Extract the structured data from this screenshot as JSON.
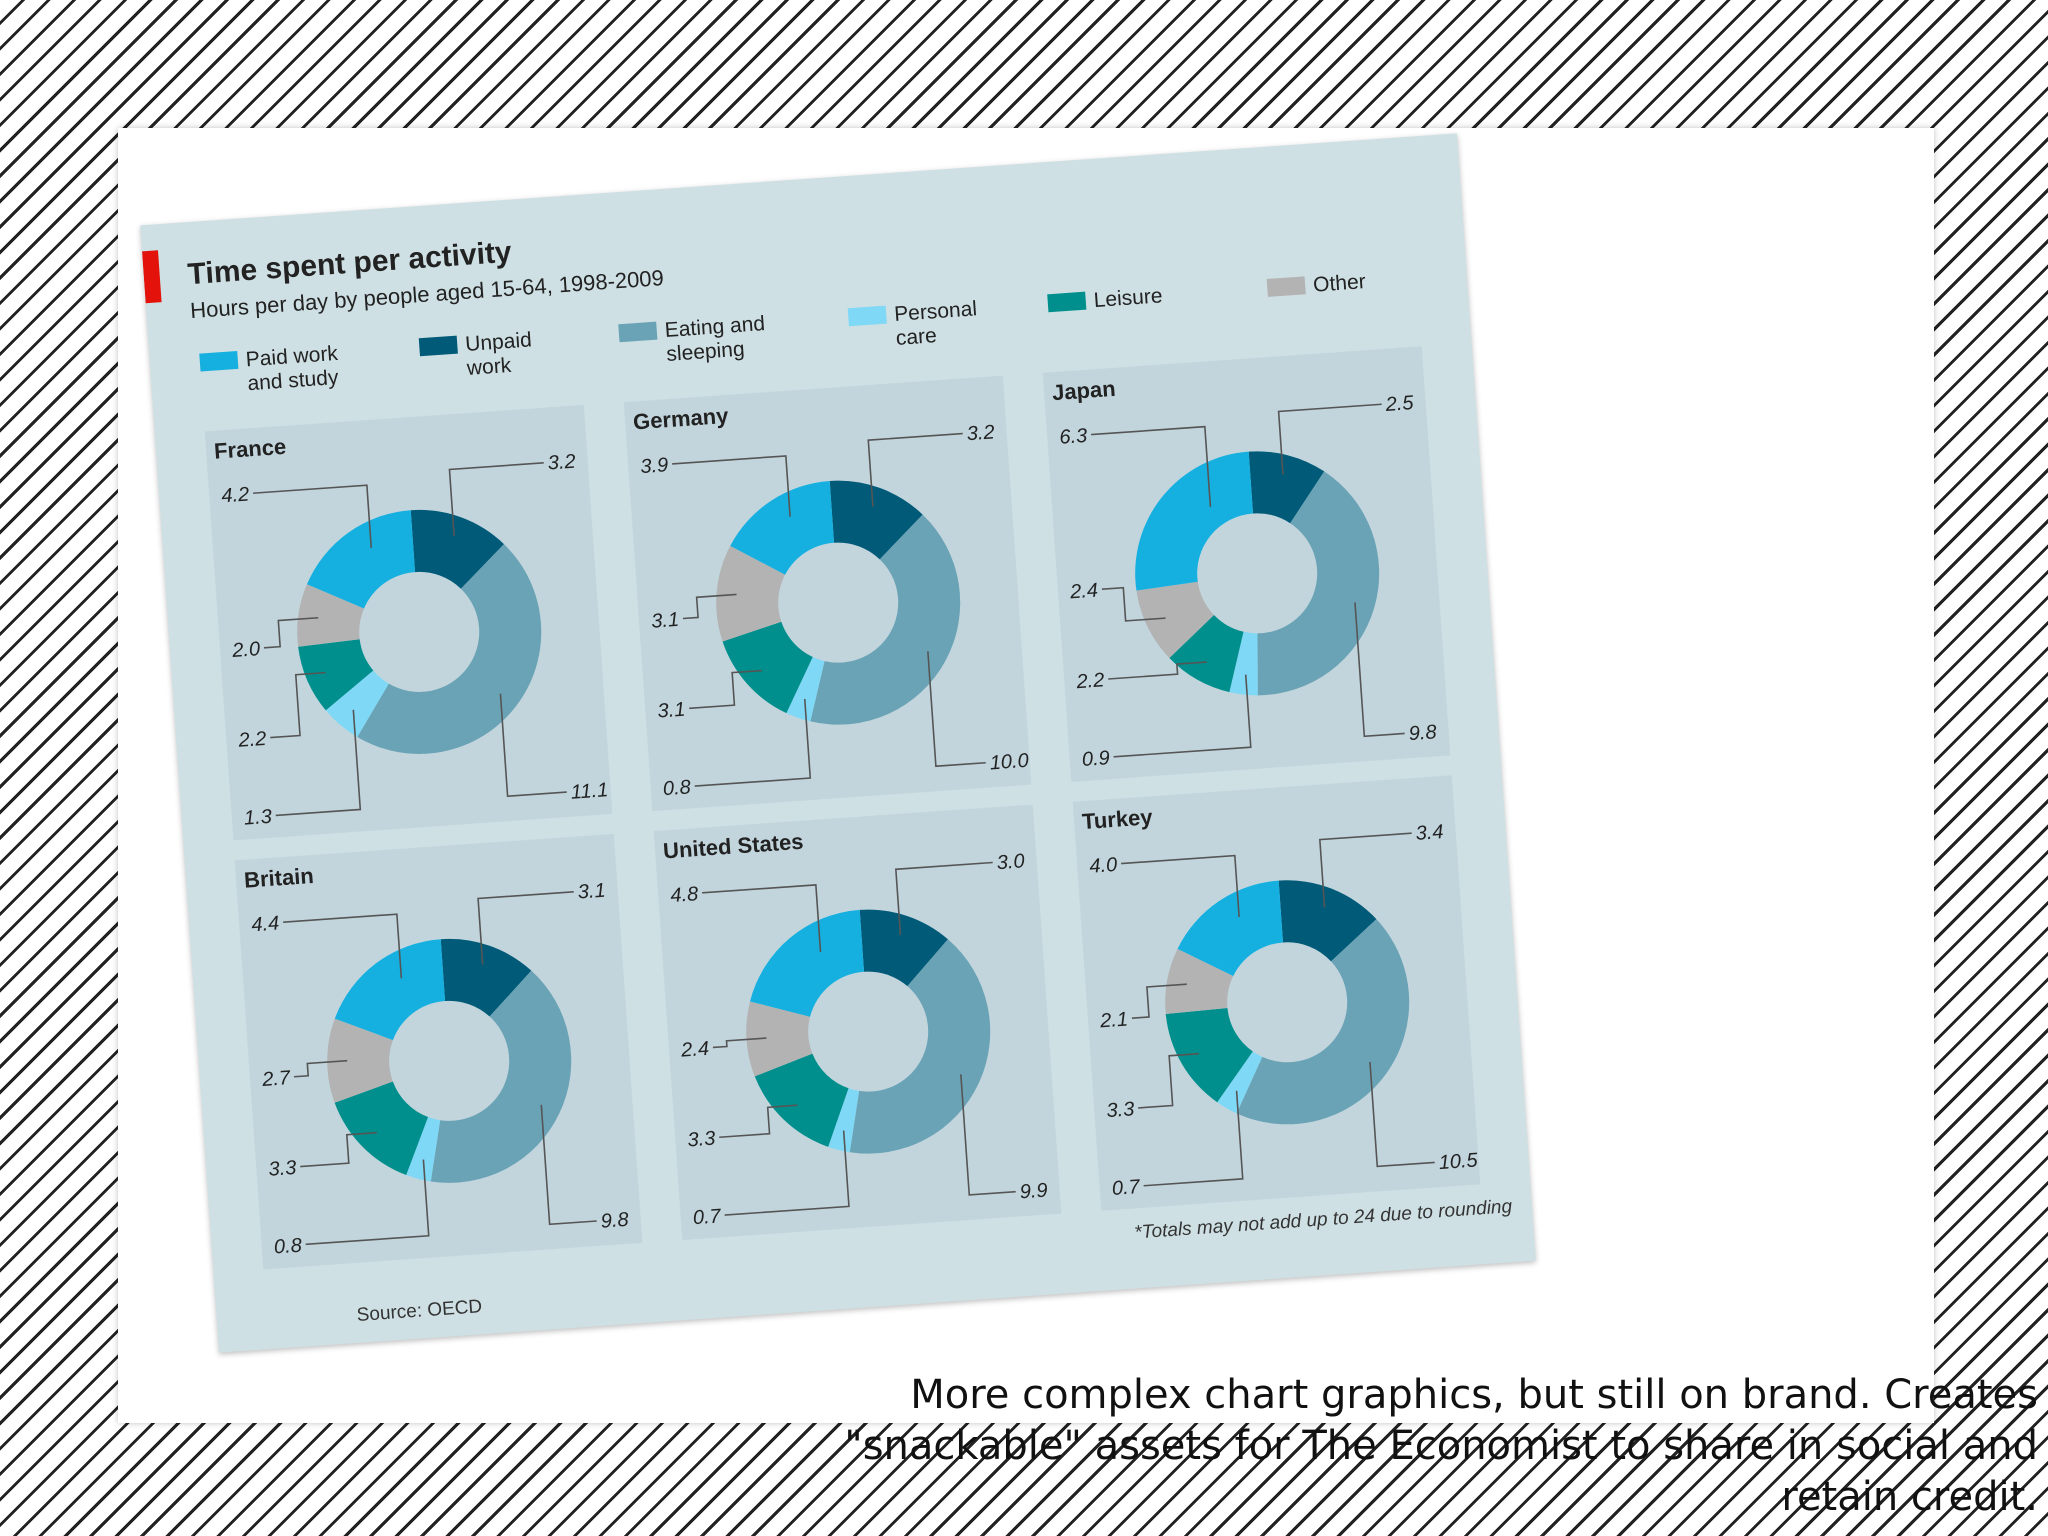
{
  "caption": "More complex chart graphics, but still on brand. Creates \"snackable\" assets for The Economist to share in social and retain credit.",
  "colors": {
    "accent": "#e3120b",
    "panel_background": "#cfe0e4",
    "chart_background": "#c2d5dd",
    "text": "#222222",
    "leader": "#555555"
  },
  "chart_data": {
    "type": "pie",
    "variant": "donut small multiples",
    "title": "Time spent per activity",
    "subtitle": "Hours per day by people aged 15-64, 1998-2009",
    "source": "Source: OECD",
    "footnote": "*Totals may not add up to 24 due to rounding",
    "categories": [
      {
        "key": "paid",
        "label": [
          "Paid work",
          "and study"
        ],
        "color": "#15b0e0"
      },
      {
        "key": "unpaid",
        "label": [
          "Unpaid",
          "work"
        ],
        "color": "#005a78"
      },
      {
        "key": "eating",
        "label": [
          "Eating and",
          "sleeping"
        ],
        "color": "#6aa3b5"
      },
      {
        "key": "personal",
        "label": [
          "Personal",
          "care"
        ],
        "color": "#7fd8f5"
      },
      {
        "key": "leisure",
        "label": [
          "Leisure"
        ],
        "color": "#008f8c"
      },
      {
        "key": "other",
        "label": [
          "Other"
        ],
        "color": "#b3b3b3"
      }
    ],
    "countries": [
      {
        "name": "France",
        "values": {
          "paid": 4.2,
          "unpaid": 3.2,
          "eating": 11.1,
          "personal": 1.3,
          "leisure": 2.2,
          "other": 2.0
        }
      },
      {
        "name": "Germany",
        "values": {
          "paid": 3.9,
          "unpaid": 3.2,
          "eating": 10.0,
          "personal": 0.8,
          "leisure": 3.1,
          "other": 3.1
        }
      },
      {
        "name": "Japan",
        "values": {
          "paid": 6.3,
          "unpaid": 2.5,
          "eating": 9.8,
          "personal": 0.9,
          "leisure": 2.2,
          "other": 2.4
        }
      },
      {
        "name": "Britain",
        "values": {
          "paid": 4.4,
          "unpaid": 3.1,
          "eating": 9.8,
          "personal": 0.8,
          "leisure": 3.3,
          "other": 2.7
        }
      },
      {
        "name": "United States",
        "values": {
          "paid": 4.8,
          "unpaid": 3.0,
          "eating": 9.9,
          "personal": 0.7,
          "leisure": 3.3,
          "other": 2.4
        }
      },
      {
        "name": "Turkey",
        "values": {
          "paid": 4.0,
          "unpaid": 3.4,
          "eating": 10.5,
          "personal": 0.7,
          "leisure": 3.3,
          "other": 2.1
        }
      }
    ]
  }
}
